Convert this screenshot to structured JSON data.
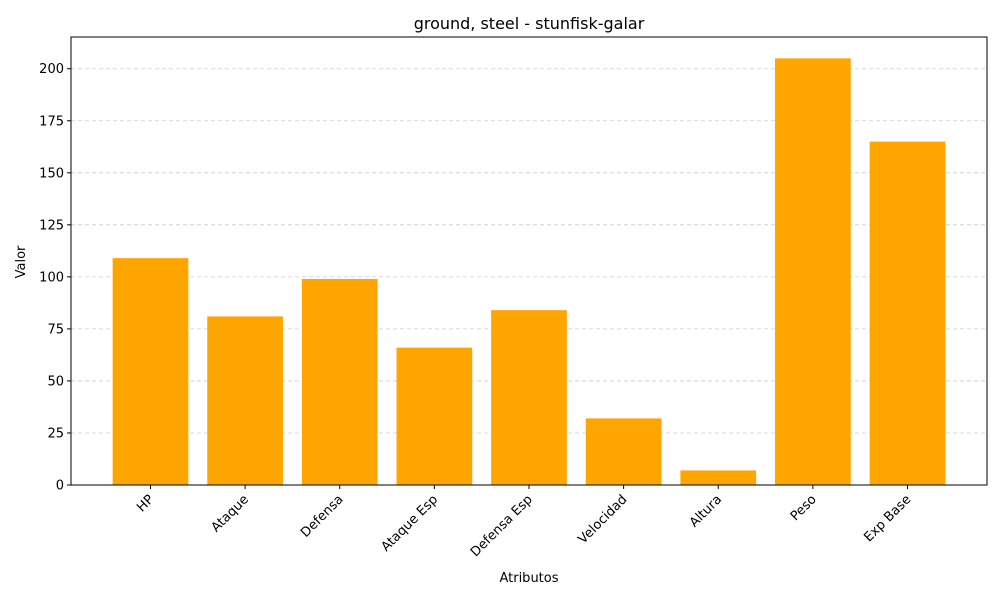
{
  "chart_data": {
    "type": "bar",
    "title": "ground, steel - stunfisk-galar",
    "xlabel": "Atributos",
    "ylabel": "Valor",
    "categories": [
      "HP",
      "Ataque",
      "Defensa",
      "Ataque Esp",
      "Defensa Esp",
      "Velocidad",
      "Altura",
      "Peso",
      "Exp Base"
    ],
    "values": [
      109,
      81,
      99,
      66,
      84,
      32,
      7,
      205,
      165
    ],
    "ylim": [
      0,
      215.25
    ],
    "yticks": [
      0,
      25,
      50,
      75,
      100,
      125,
      150,
      175,
      200
    ],
    "grid": "y-axis dashed",
    "bar_color": "#FFA500",
    "x_tick_rotation": 45
  }
}
